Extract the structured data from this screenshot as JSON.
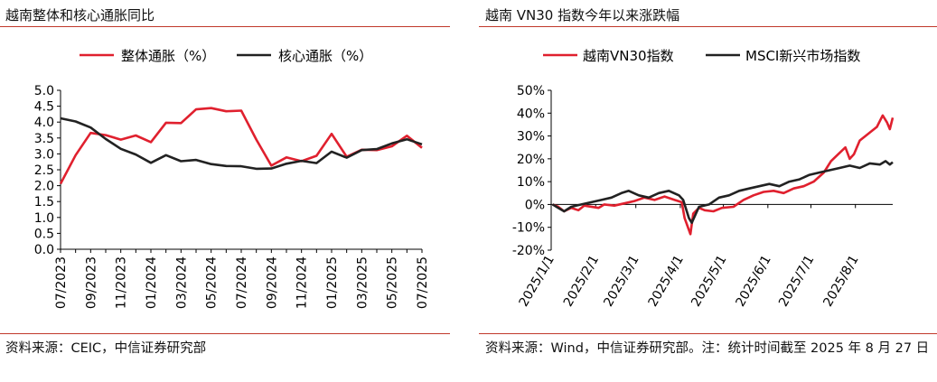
{
  "left": {
    "title": "越南整体和核心通胀同比",
    "source": "资料来源：CEIC，中信证券研究部"
  },
  "right": {
    "title": "越南 VN30 指数今年以来涨跌幅",
    "source": "资料来源：Wind，中信证券研究部。注：统计时间截至 2025 年 8 月 27 日"
  },
  "colors": {
    "red": "#e0202e",
    "black": "#222222",
    "rule": "#c0392b"
  },
  "chart_data": [
    {
      "type": "line",
      "title": "越南整体和核心通胀同比",
      "x": [
        "07/2023",
        "08/2023",
        "09/2023",
        "10/2023",
        "11/2023",
        "12/2023",
        "01/2024",
        "02/2024",
        "03/2024",
        "04/2024",
        "05/2024",
        "06/2024",
        "07/2024",
        "08/2024",
        "09/2024",
        "10/2024",
        "11/2024",
        "12/2024",
        "01/2025",
        "02/2025",
        "03/2025",
        "04/2025",
        "05/2025",
        "06/2025",
        "07/2025"
      ],
      "tick_labels": [
        "07/2023",
        "09/2023",
        "11/2023",
        "01/2024",
        "03/2024",
        "05/2024",
        "07/2024",
        "09/2024",
        "11/2024",
        "01/2025",
        "03/2025",
        "05/2025",
        "07/2025"
      ],
      "ylim": [
        0,
        5
      ],
      "yticks": [
        "0.0",
        "0.5",
        "1.0",
        "1.5",
        "2.0",
        "2.5",
        "3.0",
        "3.5",
        "4.0",
        "4.5",
        "5.0"
      ],
      "legend_position": "top",
      "series": [
        {
          "name": "整体通胀（%）",
          "color": "#e0202e",
          "values": [
            2.06,
            2.96,
            3.66,
            3.59,
            3.45,
            3.58,
            3.37,
            3.98,
            3.97,
            4.4,
            4.44,
            4.34,
            4.36,
            3.45,
            2.63,
            2.89,
            2.77,
            2.94,
            3.63,
            2.91,
            3.13,
            3.12,
            3.24,
            3.57,
            3.19
          ]
        },
        {
          "name": "核心通胀（%）",
          "color": "#222222",
          "values": [
            4.12,
            4.02,
            3.83,
            3.47,
            3.16,
            2.98,
            2.72,
            2.96,
            2.77,
            2.81,
            2.68,
            2.62,
            2.61,
            2.53,
            2.54,
            2.69,
            2.78,
            2.71,
            3.07,
            2.88,
            3.12,
            3.15,
            3.33,
            3.46,
            3.3
          ]
        }
      ]
    },
    {
      "type": "line",
      "title": "越南 VN30 指数今年以来涨跌幅",
      "x_range": [
        "2025/1/1",
        "2025/8/27"
      ],
      "tick_labels": [
        "2025/1/1",
        "2025/2/1",
        "2025/3/1",
        "2025/4/1",
        "2025/5/1",
        "2025/6/1",
        "2025/7/1",
        "2025/8/1"
      ],
      "ylim": [
        -20,
        50
      ],
      "yticks": [
        "-20%",
        "-10%",
        "0%",
        "10%",
        "20%",
        "30%",
        "40%",
        "50%"
      ],
      "legend_position": "top",
      "series": [
        {
          "name": "越南VN30指数",
          "color": "#e0202e",
          "points": [
            [
              "2025/1/2",
              0
            ],
            [
              "2025/1/6",
              -1
            ],
            [
              "2025/1/10",
              -3
            ],
            [
              "2025/1/15",
              -1.5
            ],
            [
              "2025/1/20",
              -2.5
            ],
            [
              "2025/1/24",
              -0.5
            ],
            [
              "2025/2/3",
              -1.5
            ],
            [
              "2025/2/7",
              0
            ],
            [
              "2025/2/14",
              -0.5
            ],
            [
              "2025/2/21",
              0.5
            ],
            [
              "2025/2/28",
              1.5
            ],
            [
              "2025/3/7",
              3
            ],
            [
              "2025/3/14",
              2
            ],
            [
              "2025/3/21",
              3.5
            ],
            [
              "2025/3/28",
              2
            ],
            [
              "2025/4/2",
              1
            ],
            [
              "2025/4/4",
              -6
            ],
            [
              "2025/4/8",
              -13
            ],
            [
              "2025/4/10",
              -4
            ],
            [
              "2025/4/14",
              -1.5
            ],
            [
              "2025/4/18",
              -2.5
            ],
            [
              "2025/4/24",
              -3
            ],
            [
              "2025/4/30",
              -1.5
            ],
            [
              "2025/5/8",
              -1
            ],
            [
              "2025/5/15",
              2
            ],
            [
              "2025/5/22",
              4
            ],
            [
              "2025/5/29",
              5.5
            ],
            [
              "2025/6/5",
              6
            ],
            [
              "2025/6/12",
              5
            ],
            [
              "2025/6/19",
              7
            ],
            [
              "2025/6/26",
              8
            ],
            [
              "2025/7/3",
              10
            ],
            [
              "2025/7/10",
              14
            ],
            [
              "2025/7/15",
              19
            ],
            [
              "2025/7/20",
              22
            ],
            [
              "2025/7/25",
              25
            ],
            [
              "2025/7/28",
              20
            ],
            [
              "2025/7/31",
              22
            ],
            [
              "2025/8/4",
              28
            ],
            [
              "2025/8/8",
              30
            ],
            [
              "2025/8/12",
              32
            ],
            [
              "2025/8/16",
              34
            ],
            [
              "2025/8/20",
              39
            ],
            [
              "2025/8/23",
              36
            ],
            [
              "2025/8/25",
              33
            ],
            [
              "2025/8/27",
              38
            ]
          ]
        },
        {
          "name": "MSCI新兴市场指数",
          "color": "#222222",
          "points": [
            [
              "2025/1/2",
              0
            ],
            [
              "2025/1/6",
              -1.5
            ],
            [
              "2025/1/10",
              -3
            ],
            [
              "2025/1/15",
              -1
            ],
            [
              "2025/1/22",
              0
            ],
            [
              "2025/1/29",
              1
            ],
            [
              "2025/2/5",
              2
            ],
            [
              "2025/2/12",
              3
            ],
            [
              "2025/2/19",
              5
            ],
            [
              "2025/2/24",
              6
            ],
            [
              "2025/3/3",
              4
            ],
            [
              "2025/3/10",
              3
            ],
            [
              "2025/3/17",
              5
            ],
            [
              "2025/3/24",
              6
            ],
            [
              "2025/3/31",
              4
            ],
            [
              "2025/4/3",
              2
            ],
            [
              "2025/4/7",
              -6
            ],
            [
              "2025/4/9",
              -8
            ],
            [
              "2025/4/14",
              -1
            ],
            [
              "2025/4/21",
              0
            ],
            [
              "2025/4/28",
              3
            ],
            [
              "2025/5/5",
              4
            ],
            [
              "2025/5/12",
              6
            ],
            [
              "2025/5/19",
              7
            ],
            [
              "2025/5/26",
              8
            ],
            [
              "2025/6/2",
              9
            ],
            [
              "2025/6/9",
              8
            ],
            [
              "2025/6/16",
              10
            ],
            [
              "2025/6/23",
              11
            ],
            [
              "2025/6/30",
              13
            ],
            [
              "2025/7/7",
              14
            ],
            [
              "2025/7/14",
              15
            ],
            [
              "2025/7/21",
              16
            ],
            [
              "2025/7/28",
              17
            ],
            [
              "2025/8/4",
              16
            ],
            [
              "2025/8/11",
              18
            ],
            [
              "2025/8/18",
              17.5
            ],
            [
              "2025/8/22",
              19
            ],
            [
              "2025/8/25",
              17.5
            ],
            [
              "2025/8/27",
              18.5
            ]
          ]
        }
      ]
    }
  ]
}
